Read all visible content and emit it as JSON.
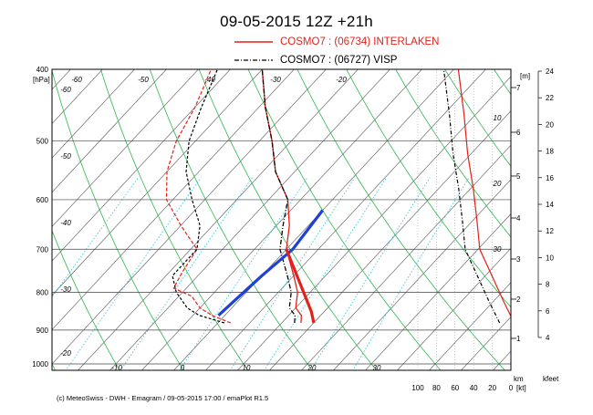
{
  "title": "09-05-2015  12Z +21h",
  "legend": [
    {
      "label": "COSMO7 : (06734)  INTERLAKEN",
      "color": "#e32019",
      "style": "solid"
    },
    {
      "label": "COSMO7 : (06727)  VISP",
      "color": "#000000",
      "style": "dash-dot"
    }
  ],
  "footer": "(c) MeteoSwiss - DWH - Emagram / 09-05-2015  17:00 / emaPlot R1.5",
  "chart_data": {
    "type": "line",
    "title": "09-05-2015  12Z +21h",
    "diagram": "emagram",
    "y_axis": {
      "label": "400\n[hPa]",
      "unit": "[hPa]",
      "scale": "log",
      "range": [
        1020,
        400
      ],
      "ticks": [
        400,
        500,
        600,
        700,
        800,
        900,
        1000
      ]
    },
    "x_axis_temperature": {
      "unit": "degC",
      "range": [
        -40,
        40
      ],
      "ticks": [
        -10,
        0,
        10,
        20,
        30
      ]
    },
    "isotherm_labels": [
      -60,
      -50,
      -40,
      -30,
      -20,
      -60,
      -50,
      -40,
      -30,
      -20,
      -10,
      0,
      10,
      20,
      30
    ],
    "height_m_axis": {
      "label": "[m]",
      "ticks": [
        1,
        2,
        3,
        4,
        5,
        6,
        7
      ]
    },
    "height_m_axis_unit": "km",
    "height_kfeet_axis": {
      "label": "kfeet",
      "ticks": [
        4,
        6,
        8,
        10,
        12,
        14,
        16,
        18,
        20,
        22,
        24
      ]
    },
    "wind_axis": {
      "unit": "[kt]",
      "ticks": [
        100,
        80,
        60,
        40,
        20,
        0
      ]
    },
    "wind_speed_isolines": [
      10,
      20,
      30
    ],
    "series": [
      {
        "name": "COSMO7 : (06734)  INTERLAKEN",
        "color": "#e32019",
        "temperature": [
          [
            880,
            13
          ],
          [
            860,
            12
          ],
          [
            840,
            10
          ],
          [
            800,
            8
          ],
          [
            760,
            5
          ],
          [
            700,
            0
          ],
          [
            650,
            -3
          ],
          [
            600,
            -7
          ],
          [
            550,
            -13
          ],
          [
            500,
            -18
          ],
          [
            450,
            -24
          ],
          [
            400,
            -30
          ]
        ],
        "dewpoint": [
          [
            880,
            2
          ],
          [
            860,
            -2
          ],
          [
            840,
            -5
          ],
          [
            810,
            -8
          ],
          [
            790,
            -12
          ],
          [
            750,
            -13
          ],
          [
            700,
            -14
          ],
          [
            650,
            -20
          ],
          [
            600,
            -26
          ],
          [
            550,
            -30
          ],
          [
            500,
            -33
          ],
          [
            450,
            -35
          ],
          [
            400,
            -38
          ]
        ]
      },
      {
        "name": "COSMO7 : (06727)  VISP",
        "color": "#000000",
        "temperature": [
          [
            880,
            12
          ],
          [
            860,
            11
          ],
          [
            840,
            9
          ],
          [
            800,
            7
          ],
          [
            760,
            4
          ],
          [
            700,
            -1
          ],
          [
            650,
            -4
          ],
          [
            600,
            -7
          ],
          [
            550,
            -13
          ],
          [
            500,
            -18
          ],
          [
            450,
            -24
          ],
          [
            400,
            -30
          ]
        ],
        "dewpoint": [
          [
            880,
            1
          ],
          [
            860,
            -4
          ],
          [
            840,
            -7
          ],
          [
            800,
            -11
          ],
          [
            760,
            -14
          ],
          [
            700,
            -14
          ],
          [
            650,
            -17
          ],
          [
            600,
            -22
          ],
          [
            550,
            -27
          ],
          [
            500,
            -31
          ],
          [
            450,
            -34
          ],
          [
            400,
            -37
          ]
        ]
      }
    ],
    "lifted_parcel_blue": [
      [
        860,
        -1
      ],
      [
        760,
        0
      ],
      [
        700,
        1
      ],
      [
        620,
        0
      ]
    ],
    "lifted_parcel_red": [
      [
        880,
        15
      ],
      [
        850,
        13
      ],
      [
        700,
        0
      ]
    ]
  }
}
